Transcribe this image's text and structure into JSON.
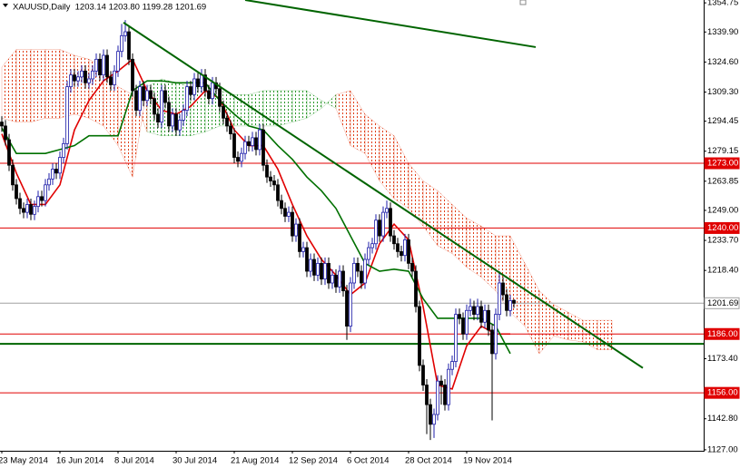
{
  "chart_data": {
    "type": "candlestick",
    "title": "XAUUSD,Daily  1203.14 1203.80 1199.28 1201.69",
    "categories": [
      "23 May 2014",
      null,
      null,
      null,
      null,
      null,
      null,
      null,
      null,
      null,
      null,
      null,
      null,
      null,
      null,
      null,
      "16 Jun 2014",
      null,
      null,
      null,
      null,
      null,
      null,
      null,
      null,
      null,
      null,
      null,
      null,
      null,
      null,
      null,
      "8 Jul 2014",
      null,
      null,
      null,
      null,
      null,
      null,
      null,
      null,
      null,
      null,
      null,
      null,
      null,
      null,
      null,
      "30 Jul 2014",
      null,
      null,
      null,
      null,
      null,
      null,
      null,
      null,
      null,
      null,
      null,
      null,
      null,
      null,
      null,
      "21 Aug 2014",
      null,
      null,
      null,
      null,
      null,
      null,
      null,
      null,
      null,
      null,
      null,
      null,
      null,
      null,
      null,
      "12 Sep 2014",
      null,
      null,
      null,
      null,
      null,
      null,
      null,
      null,
      null,
      null,
      null,
      null,
      null,
      null,
      null,
      "6 Oct 2014",
      null,
      null,
      null,
      null,
      null,
      null,
      null,
      null,
      null,
      null,
      null,
      null,
      null,
      null,
      null,
      "28 Oct 2014",
      null,
      null,
      null,
      null,
      null,
      null,
      null,
      null,
      null,
      null,
      null,
      null,
      null,
      null,
      null,
      "19 Nov 2014",
      null,
      null,
      null,
      null,
      null,
      null,
      null,
      null,
      null,
      null,
      null,
      null,
      null
    ],
    "open": [
      1294,
      1292,
      1285,
      1272,
      1262,
      1255,
      1250,
      1248,
      1252,
      1247,
      1251,
      1256,
      1254,
      1262,
      1265,
      1270,
      1268,
      1276,
      1283,
      1312,
      1318,
      1315,
      1317,
      1320,
      1314,
      1316,
      1320,
      1326,
      1318,
      1328,
      1317,
      1313,
      1320,
      1330,
      1338,
      1340,
      1326,
      1310,
      1300,
      1312,
      1305,
      1310,
      1306,
      1298,
      1294,
      1310,
      1304,
      1292,
      1298,
      1290,
      1295,
      1300,
      1312,
      1308,
      1316,
      1312,
      1318,
      1310,
      1306,
      1314,
      1311,
      1302,
      1296,
      1292,
      1288,
      1276,
      1274,
      1278,
      1284,
      1282,
      1286,
      1280,
      1290,
      1272,
      1266,
      1264,
      1262,
      1254,
      1250,
      1246,
      1248,
      1236,
      1242,
      1228,
      1230,
      1218,
      1224,
      1216,
      1222,
      1214,
      1222,
      1212,
      1216,
      1210,
      1218,
      1208,
      1190,
      1212,
      1222,
      1218,
      1212,
      1224,
      1230,
      1232,
      1244,
      1236,
      1248,
      1250,
      1236,
      1232,
      1228,
      1226,
      1234,
      1222,
      1218,
      1200,
      1170,
      1160,
      1150,
      1140,
      1145,
      1162,
      1160,
      1150,
      1168,
      1172,
      1196,
      1194,
      1186,
      1198,
      1200,
      1196,
      1200,
      1192,
      1198,
      1188,
      1176,
      1196,
      1212,
      1206,
      1198,
      1203.14
    ],
    "high": [
      1297,
      1295,
      1288,
      1275,
      1265,
      1258,
      1253,
      1255,
      1255,
      1254,
      1259,
      1259,
      1265,
      1268,
      1273,
      1273,
      1279,
      1286,
      1315,
      1321,
      1321,
      1320,
      1323,
      1323,
      1319,
      1323,
      1329,
      1329,
      1331,
      1331,
      1320,
      1323,
      1333,
      1344,
      1346,
      1343,
      1329,
      1313,
      1315,
      1315,
      1313,
      1313,
      1309,
      1301,
      1313,
      1313,
      1307,
      1301,
      1301,
      1298,
      1303,
      1315,
      1315,
      1319,
      1319,
      1321,
      1321,
      1313,
      1317,
      1317,
      1314,
      1305,
      1299,
      1295,
      1291,
      1279,
      1281,
      1287,
      1287,
      1289,
      1289,
      1293,
      1293,
      1275,
      1269,
      1267,
      1265,
      1257,
      1253,
      1251,
      1251,
      1245,
      1245,
      1233,
      1233,
      1227,
      1227,
      1225,
      1225,
      1225,
      1225,
      1219,
      1219,
      1221,
      1221,
      1211,
      1215,
      1225,
      1225,
      1221,
      1227,
      1233,
      1235,
      1247,
      1247,
      1251,
      1254,
      1253,
      1239,
      1235,
      1231,
      1237,
      1237,
      1225,
      1221,
      1203,
      1173,
      1163,
      1153,
      1148,
      1165,
      1165,
      1163,
      1171,
      1175,
      1199,
      1199,
      1197,
      1201,
      1204,
      1203,
      1204,
      1203,
      1201,
      1201,
      1191,
      1199,
      1218,
      1215,
      1209,
      1206,
      1203.8
    ],
    "low": [
      1289,
      1282,
      1269,
      1259,
      1252,
      1247,
      1245,
      1245,
      1244,
      1244,
      1248,
      1251,
      1251,
      1259,
      1262,
      1265,
      1265,
      1273,
      1280,
      1309,
      1312,
      1312,
      1314,
      1311,
      1311,
      1313,
      1317,
      1315,
      1315,
      1314,
      1310,
      1310,
      1317,
      1327,
      1335,
      1323,
      1307,
      1297,
      1297,
      1302,
      1302,
      1303,
      1295,
      1291,
      1291,
      1301,
      1289,
      1289,
      1287,
      1287,
      1292,
      1297,
      1305,
      1305,
      1309,
      1309,
      1307,
      1303,
      1303,
      1308,
      1299,
      1293,
      1289,
      1285,
      1273,
      1271,
      1271,
      1275,
      1279,
      1279,
      1277,
      1277,
      1269,
      1263,
      1261,
      1259,
      1251,
      1247,
      1243,
      1243,
      1233,
      1233,
      1225,
      1225,
      1215,
      1215,
      1213,
      1213,
      1211,
      1211,
      1209,
      1209,
      1207,
      1207,
      1205,
      1183,
      1187,
      1209,
      1215,
      1209,
      1209,
      1221,
      1227,
      1229,
      1233,
      1233,
      1245,
      1233,
      1229,
      1225,
      1223,
      1223,
      1219,
      1215,
      1197,
      1167,
      1157,
      1135,
      1132,
      1133,
      1142,
      1150,
      1147,
      1147,
      1165,
      1169,
      1191,
      1183,
      1183,
      1195,
      1193,
      1193,
      1189,
      1189,
      1185,
      1142,
      1173,
      1193,
      1203,
      1195,
      1195,
      1199.28
    ],
    "close": [
      1292,
      1285,
      1272,
      1262,
      1255,
      1250,
      1248,
      1252,
      1247,
      1251,
      1256,
      1254,
      1262,
      1265,
      1270,
      1268,
      1276,
      1283,
      1312,
      1318,
      1315,
      1317,
      1320,
      1314,
      1316,
      1320,
      1326,
      1318,
      1328,
      1317,
      1313,
      1320,
      1330,
      1338,
      1340,
      1326,
      1310,
      1300,
      1312,
      1305,
      1310,
      1306,
      1298,
      1294,
      1310,
      1304,
      1292,
      1298,
      1290,
      1295,
      1300,
      1312,
      1308,
      1316,
      1312,
      1318,
      1310,
      1306,
      1314,
      1311,
      1302,
      1296,
      1292,
      1288,
      1276,
      1274,
      1278,
      1284,
      1282,
      1286,
      1280,
      1290,
      1272,
      1266,
      1264,
      1262,
      1254,
      1250,
      1246,
      1248,
      1236,
      1242,
      1228,
      1230,
      1218,
      1224,
      1216,
      1222,
      1214,
      1222,
      1212,
      1216,
      1210,
      1218,
      1208,
      1190,
      1212,
      1222,
      1218,
      1212,
      1224,
      1230,
      1232,
      1244,
      1236,
      1248,
      1250,
      1236,
      1232,
      1228,
      1226,
      1234,
      1222,
      1218,
      1200,
      1170,
      1160,
      1150,
      1140,
      1145,
      1162,
      1160,
      1150,
      1168,
      1172,
      1196,
      1194,
      1186,
      1198,
      1200,
      1196,
      1200,
      1192,
      1198,
      1188,
      1176,
      1196,
      1212,
      1206,
      1198,
      1203,
      1201.69
    ],
    "up_color": "#1c1ca8",
    "down_color": "#000000",
    "ylim": [
      1126.5,
      1356.2
    ],
    "yticks": [
      1354.75,
      {
        "value": 1339.9,
        "label": "1339.90"
      },
      {
        "value": 1324.6,
        "label": "1324.60"
      },
      {
        "value": 1309.3,
        "label": "1309.30"
      },
      1294.45,
      1279.15,
      1263.85,
      {
        "value": 1249,
        "label": "1249.00"
      },
      {
        "value": 1233.7,
        "label": "1233.70"
      },
      {
        "value": 1218.4,
        "label": "1218.40"
      },
      {
        "value": 1173.4,
        "label": "1173.40"
      },
      {
        "value": 1142.8,
        "label": "1142.80"
      },
      {
        "value": 1127,
        "label": "1127.00"
      }
    ],
    "cloud": {
      "x": [
        0,
        4,
        8,
        12,
        16,
        20,
        24,
        28,
        32,
        36,
        40,
        44,
        48,
        52,
        56,
        60,
        64,
        68,
        72,
        76,
        80,
        84,
        88,
        92,
        96,
        100,
        104,
        108,
        112,
        116,
        120,
        124,
        128,
        132,
        136,
        140,
        144,
        148,
        152,
        156,
        160,
        164,
        168
      ],
      "span_a": [
        1296,
        1294,
        1294,
        1296,
        1296,
        1298,
        1296,
        1292,
        1282,
        1266,
        1312,
        1316,
        1314,
        1312,
        1312,
        1310,
        1308,
        1308,
        1310,
        1310,
        1310,
        1310,
        1305,
        1301,
        1282,
        1278,
        1264,
        1255,
        1250,
        1241,
        1231,
        1227,
        1220,
        1215,
        1208,
        1197,
        1190,
        1176,
        1185,
        1183,
        1182,
        1178,
        1178
      ],
      "span_b": [
        1322,
        1331,
        1331,
        1331,
        1331,
        1328,
        1326,
        1322,
        1312,
        1308,
        1289,
        1287,
        1287,
        1287,
        1289,
        1292,
        1292,
        1292,
        1292,
        1292,
        1294,
        1296,
        1301,
        1308,
        1310,
        1298,
        1292,
        1287,
        1273,
        1264,
        1259,
        1252,
        1245,
        1241,
        1236,
        1236,
        1222,
        1208,
        1201,
        1197,
        1193,
        1193,
        1193
      ],
      "up_color": "#2e9a2e",
      "down_color": "#e0401a"
    },
    "lines": [
      {
        "color": "#e00000",
        "x": [
          0,
          4,
          8,
          12,
          16,
          20,
          24,
          28,
          32,
          36,
          40,
          44,
          48,
          52,
          56,
          60,
          64,
          68,
          72,
          76,
          80,
          84,
          88,
          92,
          96,
          100,
          104,
          108,
          112,
          116,
          120,
          124,
          128,
          132,
          136,
          140
        ],
        "values": [
          1288,
          1268,
          1252,
          1252,
          1262,
          1290,
          1305,
          1315,
          1320,
          1326,
          1310,
          1300,
          1298,
          1302,
          1310,
          1306,
          1290,
          1282,
          1282,
          1270,
          1252,
          1236,
          1224,
          1216,
          1206,
          1212,
          1232,
          1242,
          1234,
          1200,
          1160,
          1158,
          1180,
          1190,
          1186,
          1186
        ]
      },
      {
        "color": "#007000",
        "x": [
          0,
          4,
          8,
          12,
          16,
          20,
          24,
          28,
          32,
          36,
          40,
          44,
          48,
          52,
          56,
          60,
          64,
          68,
          72,
          76,
          80,
          84,
          88,
          92,
          96,
          100,
          104,
          108,
          112,
          116,
          120,
          124,
          128,
          132,
          136,
          140
        ],
        "values": [
          1291,
          1278,
          1278,
          1278,
          1280,
          1282,
          1287,
          1287,
          1287,
          1310,
          1315,
          1315,
          1314,
          1314,
          1314,
          1305,
          1298,
          1292,
          1290,
          1282,
          1275,
          1266,
          1259,
          1250,
          1236,
          1222,
          1218,
          1219,
          1218,
          1204,
          1194,
          1194,
          1194,
          1194,
          1190,
          1176
        ]
      }
    ],
    "trendlines": [
      {
        "color": "#006400",
        "x": [
          33.5,
          176.5
        ],
        "values": [
          1344.7,
          1168.7
        ]
      },
      {
        "color": "#006400",
        "x": [
          67,
          147
        ],
        "values": [
          1356.2,
          1332.2
        ]
      }
    ],
    "hlines": [
      {
        "color": "#006400",
        "value": 1181
      }
    ],
    "levels": [
      {
        "value": 1273,
        "label": "1273.00",
        "color": "#e00000",
        "text_color": "#ffffff"
      },
      {
        "value": 1240,
        "label": "1240.00",
        "color": "#e00000",
        "text_color": "#ffffff"
      },
      {
        "value": 1201.69,
        "color": "#a0a0a0",
        "text_color": "#000000"
      },
      {
        "value": 1186,
        "label": "1186.00",
        "color": "#e00000",
        "text_color": "#ffffff"
      },
      {
        "value": 1156,
        "label": "1156.00",
        "color": "#e00000",
        "text_color": "#ffffff"
      }
    ]
  }
}
